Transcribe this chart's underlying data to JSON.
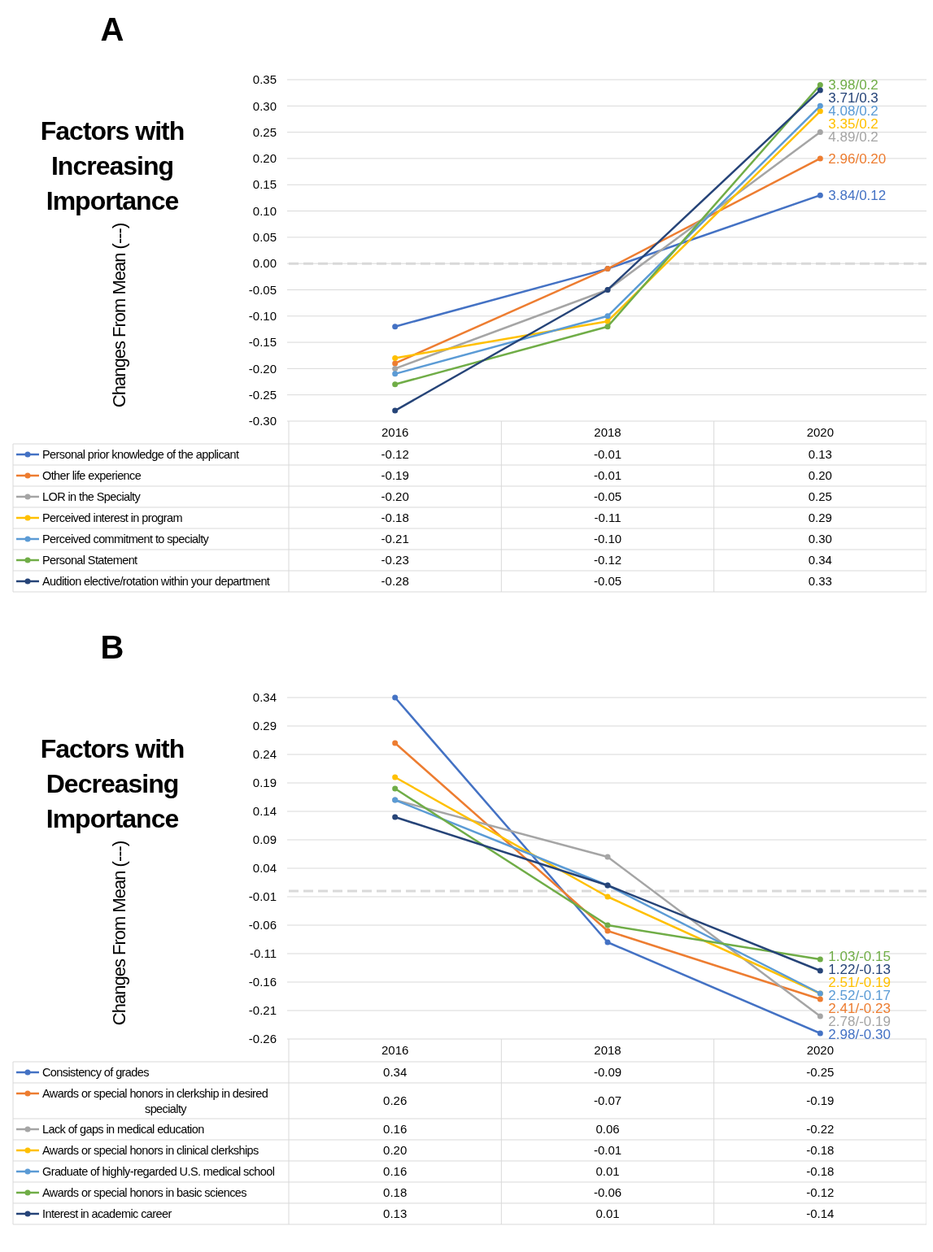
{
  "chart_data": [
    {
      "type": "line",
      "title": "A",
      "subtitle": "Factors with Increasing Importance",
      "ylabel": "Changes From Mean (---)",
      "categories": [
        "2016",
        "2018",
        "2020"
      ],
      "ylim": [
        -0.3,
        0.35
      ],
      "yticks": [
        0.35,
        {
          "value": 0.3,
          "label": "0.30"
        },
        0.25,
        {
          "value": 0.2,
          "label": "0.20"
        },
        0.15,
        {
          "value": 0.1,
          "label": "0.10"
        },
        0.05,
        {
          "value": 0,
          "label": "0.00"
        },
        -0.05,
        {
          "value": -0.1,
          "label": "-0.10"
        },
        -0.15,
        {
          "value": -0.2,
          "label": "-0.20"
        },
        -0.25,
        {
          "value": -0.3,
          "label": "-0.30"
        }
      ],
      "grid": "y",
      "legend": "bottom",
      "marker": "circle",
      "ref_lines": [
        {
          "axis": "y",
          "value": 0,
          "color": "#d9d9d9",
          "line_style": "dashed"
        }
      ],
      "series": [
        {
          "name": "Personal prior knowledge of the applicant",
          "color": "#4472c4",
          "values": [
            -0.12,
            -0.01,
            0.13
          ],
          "value_labels": [
            "-0.12",
            "-0.01",
            "0.13"
          ]
        },
        {
          "name": "Other life experience",
          "color": "#ed7d31",
          "values": [
            -0.19,
            -0.01,
            0.2
          ],
          "value_labels": [
            "-0.19",
            "-0.01",
            "0.20"
          ]
        },
        {
          "name": "LOR in the Specialty",
          "color": "#a5a5a5",
          "values": [
            -0.2,
            -0.05,
            0.25
          ],
          "value_labels": [
            "-0.20",
            "-0.05",
            "0.25"
          ]
        },
        {
          "name": "Perceived interest in program",
          "color": "#ffc000",
          "values": [
            -0.18,
            -0.11,
            0.29
          ],
          "value_labels": [
            "-0.18",
            "-0.11",
            "0.29"
          ]
        },
        {
          "name": "Perceived commitment to specialty",
          "color": "#5b9bd5",
          "values": [
            -0.21,
            -0.1,
            0.3
          ],
          "value_labels": [
            "-0.21",
            "-0.10",
            "0.30"
          ]
        },
        {
          "name": "Personal Statement",
          "color": "#70ad47",
          "values": [
            -0.23,
            -0.12,
            0.34
          ],
          "value_labels": [
            "-0.23",
            "-0.12",
            "0.34"
          ]
        },
        {
          "name": "Audition elective/rotation within your department",
          "color": "#264478",
          "values": [
            -0.28,
            -0.05,
            0.33
          ],
          "value_labels": [
            "-0.28",
            "-0.05",
            "0.33"
          ]
        }
      ],
      "annotations": [
        {
          "text": "3.84/0.12",
          "x": "2020",
          "y": 0.13
        },
        {
          "text": "2.96/0.20",
          "x": "2020",
          "y": 0.2
        },
        {
          "text": "4.89/0.2",
          "x": "2020",
          "y": 0.25
        },
        {
          "text": "3.35/0.2",
          "x": "2020",
          "y": 0.29
        },
        {
          "text": "4.08/0.2",
          "x": "2020",
          "y": 0.3
        },
        {
          "text": "3.98/0.2",
          "x": "2020",
          "y": 0.34
        },
        {
          "text": "3.71/0.3",
          "x": "2020",
          "y": 0.33
        }
      ]
    },
    {
      "type": "line",
      "title": "B",
      "subtitle": "Factors with Decreasing Importance",
      "ylabel": "Changes From Mean (---)",
      "categories": [
        "2016",
        "2018",
        "2020"
      ],
      "ylim": [
        -0.26,
        0.34
      ],
      "yticks": [
        0.34,
        0.29,
        0.24,
        0.19,
        0.14,
        0.09,
        0.04,
        -0.01,
        -0.06,
        -0.11,
        -0.16,
        -0.21,
        -0.26
      ],
      "grid": "y",
      "legend": "bottom",
      "marker": "circle",
      "ref_lines": [
        {
          "axis": "y",
          "value": 0,
          "color": "#d9d9d9",
          "line_style": "dashed"
        }
      ],
      "series": [
        {
          "name": "Consistency of grades",
          "color": "#4472c4",
          "values": [
            0.34,
            -0.09,
            -0.25
          ],
          "value_labels": [
            "0.34",
            "-0.09",
            "-0.25"
          ]
        },
        {
          "name": "Awards or special honors in clerkship in desired specialty",
          "color": "#ed7d31",
          "values": [
            0.26,
            -0.07,
            -0.19
          ],
          "value_labels": [
            "0.26",
            "-0.07",
            "-0.19"
          ]
        },
        {
          "name": "Lack of gaps in medical education",
          "color": "#a5a5a5",
          "values": [
            0.16,
            0.06,
            -0.22
          ],
          "value_labels": [
            "0.16",
            "0.06",
            "-0.22"
          ]
        },
        {
          "name": "Awards or special honors in clinical clerkships",
          "color": "#ffc000",
          "values": [
            0.2,
            -0.01,
            -0.18
          ],
          "value_labels": [
            "0.20",
            "-0.01",
            "-0.18"
          ]
        },
        {
          "name": "Graduate of highly-regarded U.S. medical school",
          "color": "#5b9bd5",
          "values": [
            0.16,
            0.01,
            -0.18
          ],
          "value_labels": [
            "0.16",
            "0.01",
            "-0.18"
          ]
        },
        {
          "name": "Awards or special honors in basic sciences",
          "color": "#70ad47",
          "values": [
            0.18,
            -0.06,
            -0.12
          ],
          "value_labels": [
            "0.18",
            "-0.06",
            "-0.12"
          ]
        },
        {
          "name": "Interest in academic career",
          "color": "#264478",
          "values": [
            0.13,
            0.01,
            -0.14
          ],
          "value_labels": [
            "0.13",
            "0.01",
            "-0.14"
          ]
        }
      ],
      "annotations": [
        {
          "text": "2.98/-0.30",
          "x": "2020",
          "y": -0.25
        },
        {
          "text": "2.41/-0.23",
          "x": "2020",
          "y": -0.19
        },
        {
          "text": "2.78/-0.19",
          "x": "2020",
          "y": -0.22
        },
        {
          "text": "2.51/-0.19",
          "x": "2020",
          "y": -0.18
        },
        {
          "text": "2.52/-0.17",
          "x": "2020",
          "y": -0.18
        },
        {
          "text": "1.03/-0.15",
          "x": "2020",
          "y": -0.12
        },
        {
          "text": "1.22/-0.13",
          "x": "2020",
          "y": -0.14
        }
      ]
    }
  ]
}
